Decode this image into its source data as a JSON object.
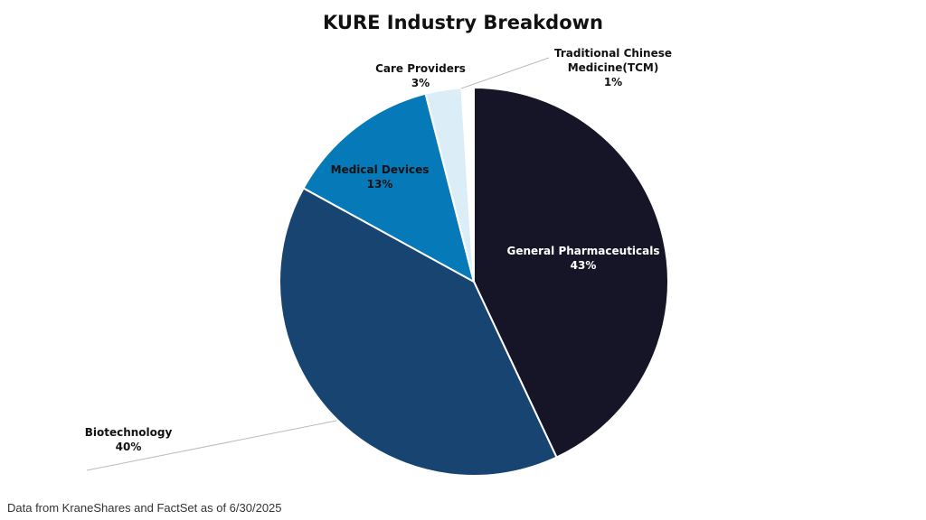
{
  "chart_data": {
    "type": "pie",
    "title": "KURE Industry Breakdown",
    "slices": [
      {
        "label": "General Pharmaceuticals",
        "value": 43,
        "value_label": "43%",
        "color": "#161527",
        "text_color": "#ffffff"
      },
      {
        "label": "Biotechnology",
        "value": 40,
        "value_label": "40%",
        "color": "#174470",
        "text_color": "#111111"
      },
      {
        "label": "Medical Devices",
        "value": 13,
        "value_label": "13%",
        "color": "#0679b9",
        "text_color": "#111111"
      },
      {
        "label": "Care Providers",
        "value": 3,
        "value_label": "3%",
        "color": "#dbeef8",
        "text_color": "#111111"
      },
      {
        "label": "Traditional Chinese Medicine(TCM)",
        "label_lines": [
          "Traditional Chinese",
          "Medicine(TCM)"
        ],
        "value": 1,
        "value_label": "1%",
        "color": "#ffffff",
        "text_color": "#111111"
      }
    ],
    "start_angle": "12 o'clock",
    "direction": "clockwise",
    "legend": "none"
  },
  "footnote": "Data from KraneShares and FactSet as of 6/30/2025"
}
